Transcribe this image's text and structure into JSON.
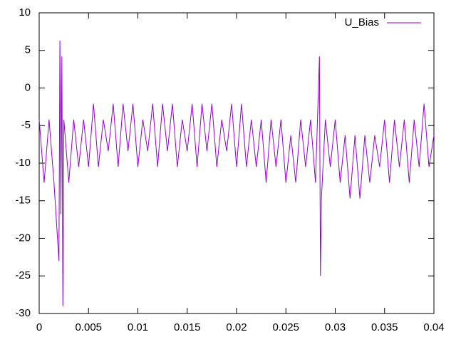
{
  "chart_data": {
    "type": "line",
    "x": [
      0,
      0.0005,
      0.001,
      0.0015,
      0.002,
      0.0021,
      0.0022,
      0.0023,
      0.0024,
      0.0025,
      0.003,
      0.0035,
      0.004,
      0.0045,
      0.005,
      0.0055,
      0.006,
      0.0065,
      0.007,
      0.0075,
      0.008,
      0.0085,
      0.009,
      0.0095,
      0.01,
      0.0105,
      0.011,
      0.0115,
      0.012,
      0.0125,
      0.013,
      0.0135,
      0.014,
      0.0145,
      0.015,
      0.0155,
      0.016,
      0.0165,
      0.017,
      0.0175,
      0.018,
      0.0185,
      0.019,
      0.0195,
      0.02,
      0.0205,
      0.021,
      0.0215,
      0.022,
      0.0225,
      0.023,
      0.0235,
      0.024,
      0.0245,
      0.025,
      0.0255,
      0.026,
      0.0265,
      0.027,
      0.0275,
      0.028,
      0.0284,
      0.0285,
      0.0286,
      0.029,
      0.0295,
      0.03,
      0.0305,
      0.031,
      0.0315,
      0.032,
      0.0325,
      0.033,
      0.0335,
      0.034,
      0.0345,
      0.035,
      0.0355,
      0.036,
      0.0365,
      0.037,
      0.0375,
      0.038,
      0.0385,
      0.039,
      0.0395,
      0.04
    ],
    "series": [
      {
        "name": "U_Bias",
        "color": "#9400d3",
        "values": [
          -4.2,
          -12.6,
          -4.2,
          -12.6,
          -23,
          6.3,
          -16.8,
          4.2,
          -29,
          -4.2,
          -12.6,
          -4.2,
          -10.5,
          -4.2,
          -10.5,
          -2.1,
          -10.5,
          -4.2,
          -8.4,
          -2.1,
          -10.5,
          -2.1,
          -8.4,
          -2.1,
          -10.5,
          -4.2,
          -8.4,
          -2.1,
          -10.5,
          -2.1,
          -8.4,
          -2.1,
          -10.5,
          -4.2,
          -8.4,
          -2.1,
          -10.5,
          -2.1,
          -8.4,
          -2.1,
          -10.5,
          -4.2,
          -8.4,
          -2.1,
          -10.5,
          -2.1,
          -10.5,
          -4.2,
          -10.5,
          -4.2,
          -12.6,
          -4.2,
          -10.5,
          -4.2,
          -12.6,
          -6.3,
          -12.6,
          -4.2,
          -10.5,
          -4.2,
          -12.6,
          4.2,
          -25,
          -14.7,
          -4.2,
          -10.5,
          -4.2,
          -12.6,
          -6.3,
          -14.7,
          -6.3,
          -14.7,
          -6.3,
          -12.6,
          -6.3,
          -10.5,
          -4.2,
          -12.6,
          -4.2,
          -10.5,
          -4.2,
          -12.6,
          -4.2,
          -10.5,
          -2.1,
          -10.5,
          -6.3
        ]
      }
    ],
    "xlim": [
      0,
      0.04
    ],
    "xticks": [
      0,
      0.005,
      0.01,
      0.015,
      0.02,
      0.025,
      0.03,
      0.035,
      0.04
    ],
    "ylim": [
      -30,
      10
    ],
    "yticks": [
      -30,
      -25,
      -20,
      -15,
      -10,
      -5,
      0,
      5,
      10
    ],
    "legend": "top-right"
  }
}
